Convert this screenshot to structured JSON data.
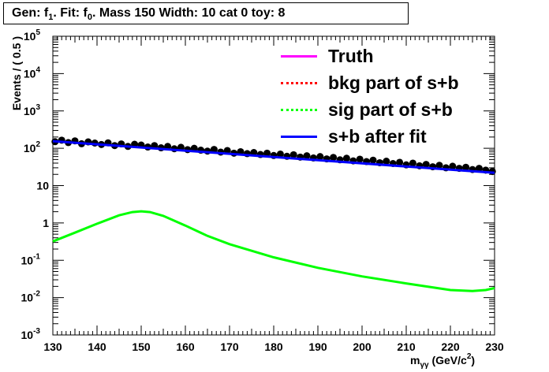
{
  "header": {
    "title_parts": [
      "Gen: f",
      "1",
      ". Fit: f",
      "0",
      ". Mass 150  Width: 10 cat 0  toy: 8"
    ]
  },
  "legend": {
    "entries": [
      {
        "label": "Truth",
        "color": "#ff00ff",
        "style": "solid"
      },
      {
        "label": "bkg part of s+b",
        "color": "#ff0000",
        "style": "dotted"
      },
      {
        "label": "sig part of s+b",
        "color": "#00ff00",
        "style": "dotted"
      },
      {
        "label": "s+b after fit",
        "color": "#0000ff",
        "style": "solid"
      }
    ]
  },
  "chart_data": {
    "type": "scatter",
    "ylabel": "Events / ( 0.5 )",
    "xlabel_parts": [
      "m",
      "γγ",
      " (GeV/c",
      "2",
      ")"
    ],
    "xlim": [
      130,
      230
    ],
    "ylim": [
      0.001,
      100000
    ],
    "yscale": "log",
    "x_ticks": [
      "130",
      "140",
      "150",
      "160",
      "170",
      "180",
      "190",
      "200",
      "210",
      "220",
      "230"
    ],
    "y_ticks": [
      {
        "value": 100000,
        "base": "10",
        "exp": "5"
      },
      {
        "value": 10000,
        "base": "10",
        "exp": "4"
      },
      {
        "value": 1000,
        "base": "10",
        "exp": "3"
      },
      {
        "value": 100,
        "base": "10",
        "exp": "2"
      },
      {
        "value": 10,
        "base": "10",
        "exp": ""
      },
      {
        "value": 1,
        "base": "1",
        "exp": ""
      },
      {
        "value": 0.1,
        "base": "10",
        "exp": "-1"
      },
      {
        "value": 0.01,
        "base": "10",
        "exp": "-2"
      },
      {
        "value": 0.001,
        "base": "10",
        "exp": "-3"
      }
    ],
    "series": [
      {
        "name": "data",
        "x": [
          130.5,
          132,
          133.5,
          135,
          136.5,
          138,
          139.5,
          141,
          142.5,
          144,
          145.5,
          147,
          148.5,
          150,
          151.5,
          153,
          154.5,
          156,
          157.5,
          159,
          160.5,
          162,
          163.5,
          165,
          166.5,
          168,
          169.5,
          171,
          172.5,
          174,
          175.5,
          177,
          178.5,
          180,
          181.5,
          183,
          184.5,
          186,
          187.5,
          189,
          190.5,
          192,
          193.5,
          195,
          196.5,
          198,
          199.5,
          201,
          202.5,
          204,
          205.5,
          207,
          208.5,
          210,
          211.5,
          213,
          214.5,
          216,
          217.5,
          219,
          220.5,
          222,
          223.5,
          225,
          226.5,
          228,
          229.5
        ],
        "y": [
          150,
          165,
          142,
          158,
          132,
          148,
          138,
          126,
          140,
          118,
          131,
          112,
          128,
          122,
          108,
          118,
          103,
          112,
          97,
          106,
          92,
          100,
          89,
          84,
          93,
          79,
          87,
          74,
          81,
          72,
          77,
          68,
          74,
          64,
          70,
          61,
          67,
          58,
          63,
          55,
          60,
          52,
          57,
          49,
          54,
          46,
          51,
          44,
          48,
          41,
          45,
          39,
          42,
          36,
          40,
          34,
          37,
          32,
          35,
          30,
          33,
          29,
          31,
          27,
          29,
          26,
          24
        ]
      },
      {
        "name": "s+b after fit",
        "x": [
          130,
          230
        ],
        "y": [
          155,
          22
        ]
      },
      {
        "name": "sig part of s+b",
        "x": [
          130,
          135,
          140,
          145,
          148,
          150,
          152,
          155,
          160,
          165,
          170,
          180,
          190,
          200,
          210,
          220,
          225,
          228,
          230
        ],
        "y": [
          0.32,
          0.55,
          0.95,
          1.6,
          1.95,
          2.05,
          1.95,
          1.55,
          0.85,
          0.45,
          0.27,
          0.12,
          0.063,
          0.037,
          0.024,
          0.016,
          0.015,
          0.016,
          0.018
        ]
      }
    ]
  }
}
